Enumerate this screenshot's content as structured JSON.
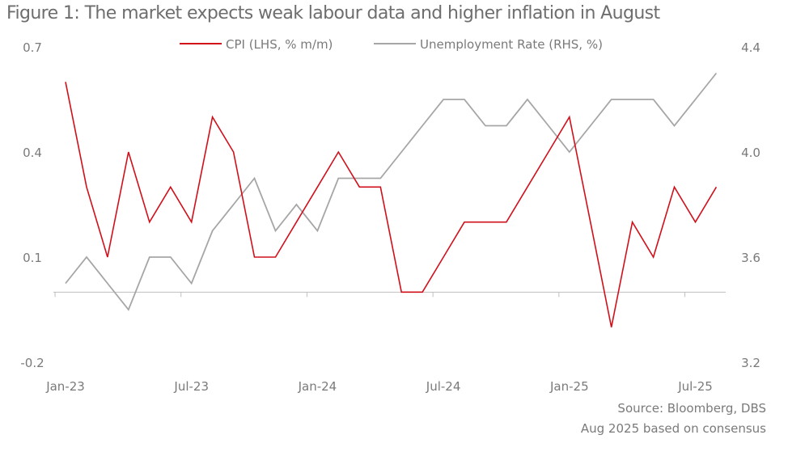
{
  "chart_data": {
    "type": "line",
    "title": "Figure 1: The market expects weak labour data and higher inflation in August",
    "x": [
      "Jan-23",
      "Feb-23",
      "Mar-23",
      "Apr-23",
      "May-23",
      "Jun-23",
      "Jul-23",
      "Aug-23",
      "Sep-23",
      "Oct-23",
      "Nov-23",
      "Dec-23",
      "Jan-24",
      "Feb-24",
      "Mar-24",
      "Apr-24",
      "May-24",
      "Jun-24",
      "Jul-24",
      "Aug-24",
      "Sep-24",
      "Oct-24",
      "Nov-24",
      "Dec-24",
      "Jan-25",
      "Feb-25",
      "Mar-25",
      "Apr-25",
      "May-25",
      "Jun-25",
      "Jul-25",
      "Aug-25"
    ],
    "x_tick_labels": [
      "Jan-23",
      "Jul-23",
      "Jan-24",
      "Jul-24",
      "Jan-25",
      "Jul-25"
    ],
    "series": [
      {
        "name": "CPI (LHS, % m/m)",
        "axis": "left",
        "color": "#d0101b",
        "values": [
          0.6,
          0.3,
          0.1,
          0.4,
          0.2,
          0.3,
          0.2,
          0.5,
          0.4,
          0.1,
          0.1,
          0.2,
          0.3,
          0.4,
          0.3,
          0.3,
          0.0,
          0.0,
          0.1,
          0.2,
          0.2,
          0.2,
          0.3,
          0.4,
          0.5,
          0.2,
          -0.1,
          0.2,
          0.1,
          0.3,
          0.2,
          0.3
        ]
      },
      {
        "name": "Unemployment Rate (RHS, %)",
        "axis": "right",
        "color": "#a6a6a6",
        "values": [
          3.5,
          3.6,
          3.5,
          3.4,
          3.6,
          3.6,
          3.5,
          3.7,
          3.8,
          3.9,
          3.7,
          3.8,
          3.7,
          3.9,
          3.9,
          3.9,
          4.0,
          4.1,
          4.2,
          4.2,
          4.1,
          4.1,
          4.2,
          4.1,
          4.0,
          4.1,
          4.2,
          4.2,
          4.2,
          4.1,
          4.2,
          4.3
        ]
      }
    ],
    "y_left": {
      "ticks": [
        "0.7",
        "0.4",
        "0.1",
        "-0.2"
      ],
      "range": [
        -0.2,
        0.7
      ]
    },
    "y_right": {
      "ticks": [
        "4.4",
        "4.0",
        "3.6",
        "3.2"
      ],
      "range": [
        3.2,
        4.4
      ]
    },
    "legend_position": "top-center",
    "grid": false
  },
  "footer": {
    "source": "Source: Bloomberg, DBS",
    "note": "Aug 2025 based on consensus"
  }
}
